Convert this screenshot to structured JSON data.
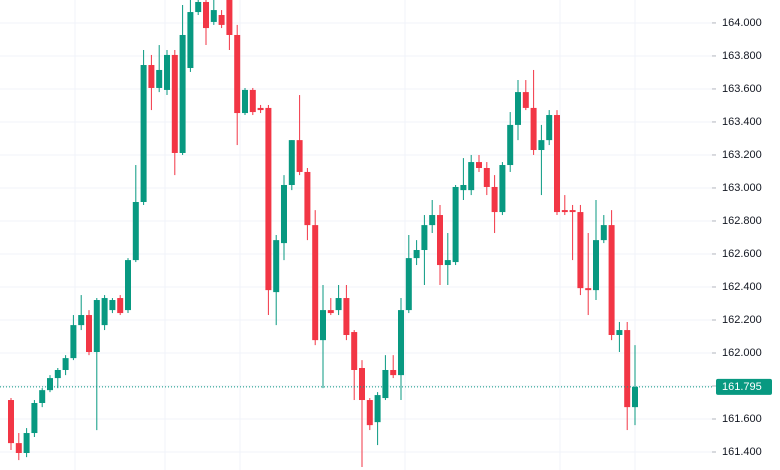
{
  "chart_data": {
    "type": "candlestick",
    "up_color": "#089981",
    "down_color": "#f23645",
    "ylim": [
      161.291,
      164.139
    ],
    "yticks": [
      {
        "value": 164.0,
        "label": "164.000"
      },
      {
        "value": 163.8,
        "label": "163.800"
      },
      {
        "value": 163.6,
        "label": "163.600"
      },
      {
        "value": 163.4,
        "label": "163.400"
      },
      {
        "value": 163.2,
        "label": "163.200"
      },
      {
        "value": 163.0,
        "label": "163.000"
      },
      {
        "value": 162.8,
        "label": "162.800"
      },
      {
        "value": 162.6,
        "label": "162.600"
      },
      {
        "value": 162.4,
        "label": "162.400"
      },
      {
        "value": 162.2,
        "label": "162.200"
      },
      {
        "value": 162.0,
        "label": "162.000"
      },
      {
        "value": 161.8,
        "label": "161.800"
      },
      {
        "value": 161.6,
        "label": "161.600"
      },
      {
        "value": 161.4,
        "label": "161.400"
      }
    ],
    "current_price": 161.795,
    "open": [
      161.715,
      161.454,
      161.394,
      161.515,
      161.697,
      161.775,
      161.848,
      161.897,
      161.969,
      162.169,
      162.23,
      162.006,
      162.169,
      162.26,
      162.333,
      162.26,
      162.563,
      162.915,
      163.745,
      163.606,
      163.594,
      163.806,
      163.212,
      163.727,
      164.066,
      164.127,
      164.006,
      164.048,
      164.139,
      163.927,
      163.454,
      163.594,
      163.485,
      163.485,
      162.369,
      162.666,
      163.018,
      163.29,
      163.097,
      162.775,
      162.078,
      162.26,
      162.26,
      162.333,
      162.127,
      161.909,
      161.715,
      161.581,
      161.727,
      161.897,
      161.866,
      162.26,
      162.575,
      162.624,
      162.775,
      162.836,
      162.533,
      162.551,
      162.987,
      162.987,
      163.157,
      163.121,
      163.006,
      162.854,
      163.139,
      163.382,
      163.581,
      163.485,
      163.23,
      163.29,
      163.442,
      162.866,
      162.866,
      162.854,
      162.393,
      162.381,
      162.684,
      162.775,
      162.109,
      162.139,
      161.672
    ],
    "high": [
      161.727,
      161.515,
      161.545,
      161.715,
      161.787,
      161.866,
      161.909,
      161.987,
      162.23,
      162.351,
      162.26,
      162.333,
      162.351,
      162.333,
      162.351,
      162.575,
      163.139,
      163.836,
      163.806,
      163.866,
      163.836,
      163.836,
      164.109,
      164.139,
      164.139,
      164.139,
      164.139,
      164.078,
      164.139,
      163.988,
      163.606,
      163.606,
      163.503,
      163.503,
      162.715,
      163.078,
      163.29,
      163.563,
      163.121,
      162.866,
      162.412,
      162.333,
      162.412,
      162.412,
      162.139,
      161.957,
      161.727,
      161.763,
      161.987,
      161.987,
      162.333,
      162.715,
      162.684,
      162.836,
      162.927,
      162.897,
      162.727,
      163.018,
      163.181,
      163.2,
      163.2,
      163.157,
      163.078,
      163.157,
      163.46,
      163.654,
      163.654,
      163.715,
      163.382,
      163.472,
      163.472,
      162.957,
      162.897,
      162.897,
      162.727,
      162.927,
      162.836,
      162.866,
      162.188,
      162.188,
      162.048
    ],
    "low": [
      161.412,
      161.351,
      161.369,
      161.491,
      161.672,
      161.763,
      161.787,
      161.866,
      161.957,
      162.139,
      161.987,
      161.533,
      162.139,
      162.242,
      162.23,
      162.242,
      162.551,
      162.897,
      163.472,
      163.581,
      163.563,
      163.078,
      163.2,
      163.703,
      164.048,
      163.866,
      163.988,
      163.969,
      163.836,
      163.26,
      163.442,
      163.442,
      163.454,
      162.23,
      162.169,
      162.563,
      162.987,
      163.078,
      162.684,
      162.048,
      161.787,
      162.23,
      162.23,
      162.078,
      161.715,
      161.309,
      161.533,
      161.442,
      161.715,
      161.848,
      161.715,
      162.242,
      162.533,
      162.412,
      162.727,
      162.412,
      162.412,
      162.533,
      162.927,
      162.957,
      163.097,
      162.957,
      162.727,
      162.836,
      163.097,
      163.29,
      163.472,
      163.2,
      162.957,
      163.26,
      162.836,
      162.836,
      162.563,
      162.351,
      162.23,
      162.321,
      162.666,
      162.078,
      162.006,
      161.533,
      161.563
    ],
    "close": [
      161.454,
      161.394,
      161.515,
      161.697,
      161.775,
      161.848,
      161.897,
      161.969,
      162.169,
      162.23,
      162.006,
      162.321,
      162.333,
      162.321,
      162.242,
      162.563,
      162.915,
      163.745,
      163.606,
      163.715,
      163.806,
      163.212,
      163.927,
      164.066,
      164.127,
      163.969,
      164.078,
      163.988,
      163.927,
      163.454,
      163.594,
      163.46,
      163.472,
      162.381,
      162.684,
      163.018,
      163.29,
      163.097,
      162.775,
      162.078,
      162.26,
      162.242,
      162.333,
      162.109,
      161.897,
      161.715,
      161.563,
      161.745,
      161.897,
      161.866,
      162.26,
      162.575,
      162.624,
      162.775,
      162.836,
      162.533,
      162.563,
      163.006,
      163.018,
      163.157,
      163.121,
      163.006,
      162.854,
      163.139,
      163.382,
      163.581,
      163.485,
      163.23,
      163.29,
      163.442,
      162.854,
      162.854,
      162.854,
      162.393,
      162.381,
      162.684,
      162.775,
      162.109,
      162.139,
      161.672,
      161.795
    ]
  }
}
